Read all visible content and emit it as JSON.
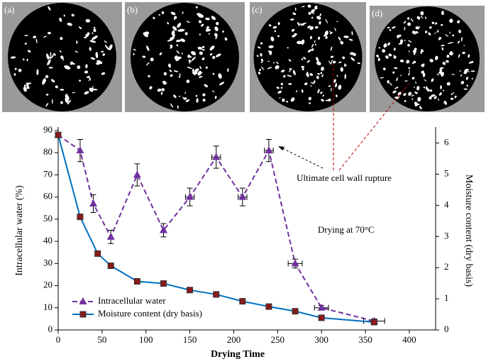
{
  "panels": [
    "(a)",
    "(b)",
    "(c)",
    "(d)"
  ],
  "chart_data": {
    "type": "line",
    "x_label": "Drying Time",
    "y_label": "Intracellular water (%)",
    "y2_label": "Moisture content (dry basis)",
    "annotations": [
      "Ultimate  cell wall rupture",
      "Drying at 70°C"
    ],
    "xlim": [
      0,
      430
    ],
    "xticks": [
      0,
      50,
      100,
      150,
      200,
      250,
      300,
      350,
      400
    ],
    "ylim": [
      0,
      90
    ],
    "yticks": [
      0,
      10,
      20,
      30,
      40,
      50,
      60,
      70,
      80,
      90
    ],
    "y2lim": [
      0,
      6.4
    ],
    "y2ticks": [
      0,
      1,
      2,
      3,
      4,
      5,
      6
    ],
    "legend": "lower left",
    "series": [
      {
        "name": "Intracellular water",
        "color": "#7030a0",
        "marker": "triangle",
        "dashed": true,
        "x": [
          0,
          25,
          40,
          60,
          90,
          120,
          150,
          180,
          210,
          240,
          270,
          300,
          360
        ],
        "values": [
          88,
          81,
          57,
          42,
          70,
          45,
          60,
          78,
          60,
          81,
          30,
          10,
          4
        ],
        "errors": [
          1,
          5,
          4,
          3,
          5,
          3,
          4,
          5,
          4,
          5,
          2,
          1,
          1
        ],
        "xerrors": [
          null,
          null,
          null,
          null,
          null,
          null,
          5,
          5,
          5,
          5,
          8,
          8,
          12
        ]
      },
      {
        "name": "Moisture content (dry basis)",
        "color": "#0070c0",
        "marker_color": "#8b1a1a",
        "marker": "square",
        "axis": "y2",
        "x": [
          0,
          25,
          45,
          60,
          90,
          120,
          150,
          180,
          210,
          240,
          270,
          300,
          360
        ],
        "values": [
          6.26,
          3.63,
          2.45,
          2.06,
          1.56,
          1.49,
          1.28,
          1.14,
          0.92,
          0.75,
          0.6,
          0.39,
          0.25
        ]
      }
    ]
  }
}
